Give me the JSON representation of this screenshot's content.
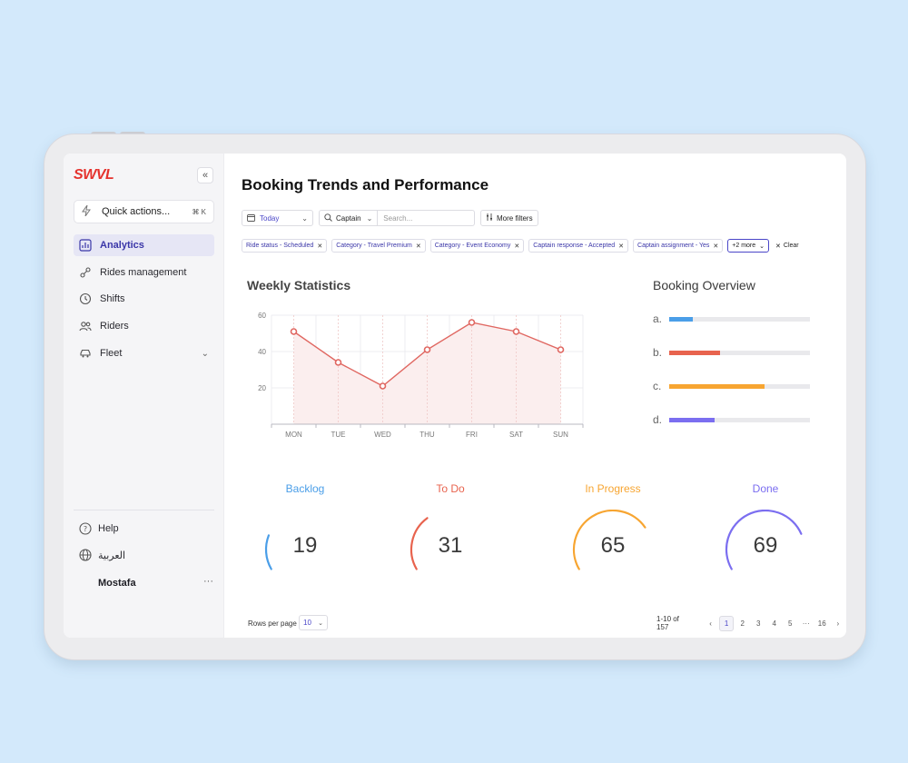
{
  "app": {
    "brand": "SWVL",
    "collapse_icon": "«",
    "quick_actions": {
      "label": "Quick actions...",
      "shortcut": "⌘ K"
    },
    "nav": [
      {
        "label": "Analytics",
        "icon": "analytics-icon",
        "active": true
      },
      {
        "label": "Rides management",
        "icon": "rides-icon",
        "active": false
      },
      {
        "label": "Shifts",
        "icon": "clock-icon",
        "active": false
      },
      {
        "label": "Riders",
        "icon": "users-icon",
        "active": false
      },
      {
        "label": "Fleet",
        "icon": "car-icon",
        "active": false,
        "expandable": true
      }
    ],
    "footer": {
      "help": "Help",
      "language": "العربية",
      "user": "Mostafa",
      "user_menu": "···"
    }
  },
  "page": {
    "title": "Booking Trends and Performance",
    "filters": {
      "date": "Today",
      "search_scope": "Captain",
      "search_placeholder": "Search...",
      "more_filters": "More filters"
    },
    "chips": [
      "Ride status - Scheduled",
      "Category - Travel Premium",
      "Category - Event Economy",
      "Captain response - Accepted",
      "Captain assignment - Yes"
    ],
    "more_chip": "+2 more",
    "clear_label": "Clear"
  },
  "weekly": {
    "title": "Weekly Statistics"
  },
  "chart_data": {
    "type": "line",
    "categories": [
      "MON",
      "TUE",
      "WED",
      "THU",
      "FRI",
      "SAT",
      "SUN"
    ],
    "values": [
      51,
      34,
      21,
      41,
      56,
      51,
      41
    ],
    "yticks": [
      20,
      40,
      60
    ],
    "ylim": [
      0,
      60
    ],
    "grid": true,
    "color": "#e06761",
    "fill": "#fbeeee"
  },
  "overview": {
    "title": "Booking Overview",
    "items": [
      {
        "letter": "a.",
        "fraction": 0.17,
        "color": "#4a9ee8"
      },
      {
        "letter": "b.",
        "fraction": 0.36,
        "color": "#e8634e"
      },
      {
        "letter": "c.",
        "fraction": 0.68,
        "color": "#f7a531"
      },
      {
        "letter": "d.",
        "fraction": 0.32,
        "color": "#7b6ef0"
      }
    ]
  },
  "stats": [
    {
      "label": "Backlog",
      "value": "19",
      "color": "#4a9ee8"
    },
    {
      "label": "To Do",
      "value": "31",
      "color": "#e8634e"
    },
    {
      "label": "In Progress",
      "value": "65",
      "color": "#f7a531"
    },
    {
      "label": "Done",
      "value": "69",
      "color": "#7b6ef0"
    }
  ],
  "pagination": {
    "rows_label": "Rows per page",
    "rows_value": "10",
    "range": "1-10 of 157",
    "prev": "‹",
    "next": "›",
    "pages": [
      "1",
      "2",
      "3",
      "4",
      "5",
      "···",
      "16"
    ],
    "current": "1"
  }
}
